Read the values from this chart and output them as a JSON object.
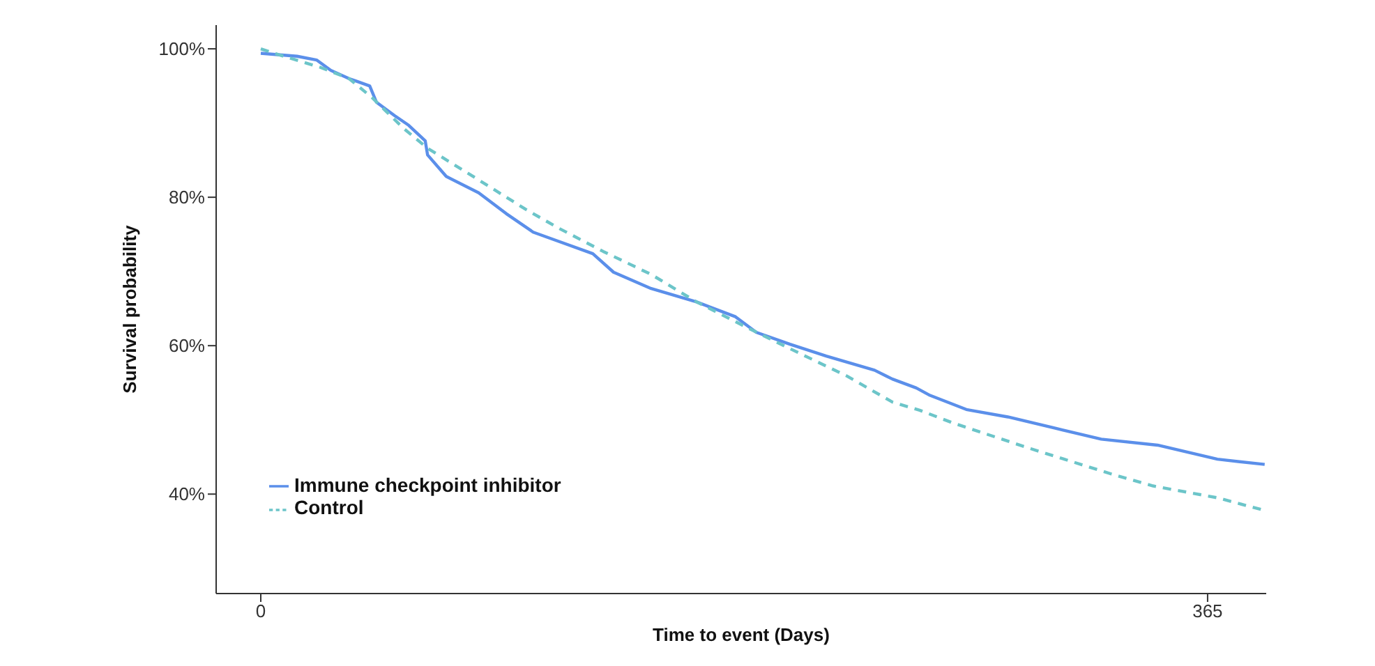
{
  "chart_data": {
    "type": "line",
    "xlabel": "Time to event (Days)",
    "ylabel": "Survival probability",
    "xlim": [
      -17.2,
      387.6
    ],
    "xticks": [
      0,
      365
    ],
    "ylim": [
      26.6,
      103.2
    ],
    "yticks": [
      {
        "value": 40,
        "label": "40%"
      },
      {
        "value": 60,
        "label": "60%"
      },
      {
        "value": 80,
        "label": "80%"
      },
      {
        "value": 100,
        "label": "100%"
      }
    ],
    "grid": false,
    "legend": "bottom left",
    "marker": "none",
    "series": [
      {
        "name": "Immune checkpoint inhibitor",
        "color": "#5b8fea",
        "line_style": "solid",
        "x": [
          0,
          14,
          21.5,
          27,
          34,
          42,
          44.6,
          51.6,
          57,
          63.4,
          64.3,
          71.5,
          84,
          94.6,
          105,
          114.5,
          128,
          136,
          150.5,
          168,
          183,
          191,
          204,
          218,
          236.6,
          243.5,
          252.7,
          258,
          272,
          288,
          306,
          324,
          345.7,
          368.8,
          387
        ],
        "values": [
          99.4,
          99.0,
          98.5,
          97.1,
          96.0,
          95.0,
          92.8,
          91.0,
          89.7,
          87.6,
          85.7,
          82.8,
          80.6,
          77.8,
          75.3,
          74.1,
          72.4,
          69.9,
          67.7,
          65.9,
          63.9,
          61.8,
          60.2,
          58.6,
          56.7,
          55.5,
          54.3,
          53.3,
          51.4,
          50.4,
          48.9,
          47.4,
          46.6,
          44.7,
          44.0
        ]
      },
      {
        "name": "Control",
        "color": "#6cc5c9",
        "line_style": "dashed",
        "x": [
          0,
          7,
          23,
          34,
          43,
          55,
          64.3,
          80.5,
          102,
          114.5,
          132,
          150.5,
          168,
          186,
          204,
          226,
          243.5,
          254,
          266.7,
          297,
          328,
          344,
          368.8,
          387
        ],
        "values": [
          100,
          99.2,
          97.5,
          96.0,
          93.4,
          89.3,
          86.6,
          83.1,
          78.4,
          75.9,
          72.7,
          69.6,
          65.9,
          62.7,
          59.6,
          55.9,
          52.4,
          51.3,
          49.6,
          46.1,
          42.7,
          41.1,
          39.5,
          37.8
        ]
      }
    ]
  }
}
